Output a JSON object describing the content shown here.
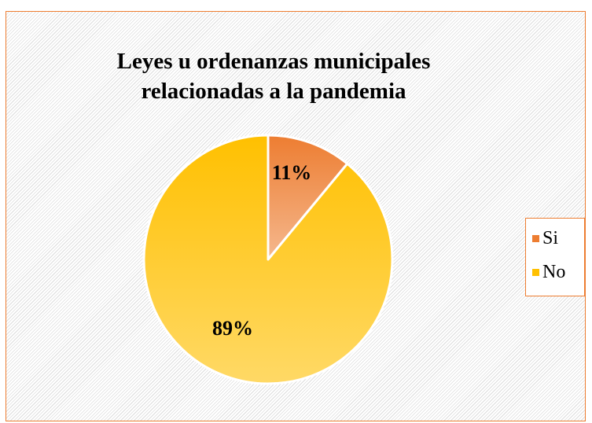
{
  "chart_data": {
    "type": "pie",
    "title": "Leyes u ordenanzas municipales relacionadas a la pandemia",
    "title_lines": [
      "Leyes u ordenanzas municipales",
      "relacionadas a la pandemia"
    ],
    "categories": [
      "Si",
      "No"
    ],
    "values": [
      11,
      89
    ],
    "value_labels": [
      "11%",
      "89%"
    ],
    "colors": [
      "#ED7D31",
      "#FFC000"
    ],
    "legend_position": "right"
  },
  "legend": {
    "items": [
      {
        "label": "Si",
        "color": "#ED7D31"
      },
      {
        "label": "No",
        "color": "#FFC000"
      }
    ]
  },
  "colors": {
    "border": "#ED7D31",
    "background_hatch": "#dcdcdc"
  }
}
